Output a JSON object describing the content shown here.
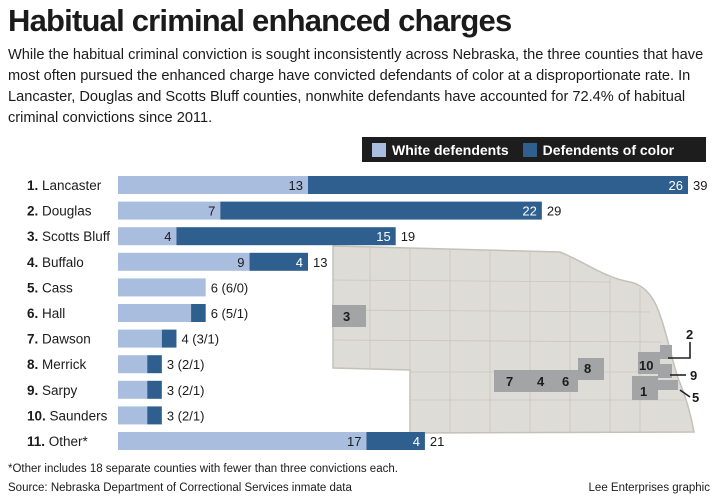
{
  "header": {
    "title": "Habitual criminal enhanced charges",
    "subtitle": "While the habitual criminal conviction is sought inconsistently across Nebraska, the three counties that have most often pursued the enhanced charge have convicted defendants of color at a disproportionate rate. In Lancaster, Douglas and Scotts Bluff counties, nonwhite defendants have accounted for 72.4% of habitual criminal convictions since 2011."
  },
  "legend": {
    "white_label": "White defendents",
    "color_label": "Defendents of color"
  },
  "colors": {
    "white": "#a9bddf",
    "color": "#2f5f8e",
    "map_land": "#dedcd6",
    "map_border": "#c4c1ba",
    "map_county": "#a3a4a6"
  },
  "chart_data": {
    "type": "bar",
    "stacked": true,
    "orientation": "horizontal",
    "categories": [
      "1. Lancaster",
      "2. Douglas",
      "3. Scotts Bluff",
      "4. Buffalo",
      "5. Cass",
      "6. Hall",
      "7. Dawson",
      "8. Merrick",
      "9. Sarpy",
      "10. Saunders",
      "11. Other*"
    ],
    "series": [
      {
        "name": "White defendents",
        "values": [
          13,
          7,
          4,
          9,
          6,
          5,
          3,
          2,
          2,
          2,
          17
        ]
      },
      {
        "name": "Defendents of color",
        "values": [
          26,
          22,
          15,
          4,
          0,
          1,
          1,
          1,
          1,
          1,
          4
        ]
      }
    ],
    "show_segment_labels": [
      true,
      true,
      true,
      true,
      false,
      false,
      false,
      false,
      false,
      false,
      true
    ],
    "total_labels": [
      "39",
      "29",
      "19",
      "13",
      "6 (6/0)",
      "6 (5/1)",
      "4 (3/1)",
      "3 (2/1)",
      "3 (2/1)",
      "3 (2/1)",
      "21"
    ],
    "xlim": [
      0,
      39
    ]
  },
  "map": {
    "county_labels": [
      "3",
      "7",
      "4",
      "6",
      "8",
      "10",
      "2",
      "9",
      "1",
      "5"
    ]
  },
  "footer": {
    "footnote": "*Other includes 18 separate counties with fewer than three convictions each.",
    "source": "Source: Nebraska Department of Correctional Services inmate data",
    "credit": "Lee Enterprises graphic"
  }
}
